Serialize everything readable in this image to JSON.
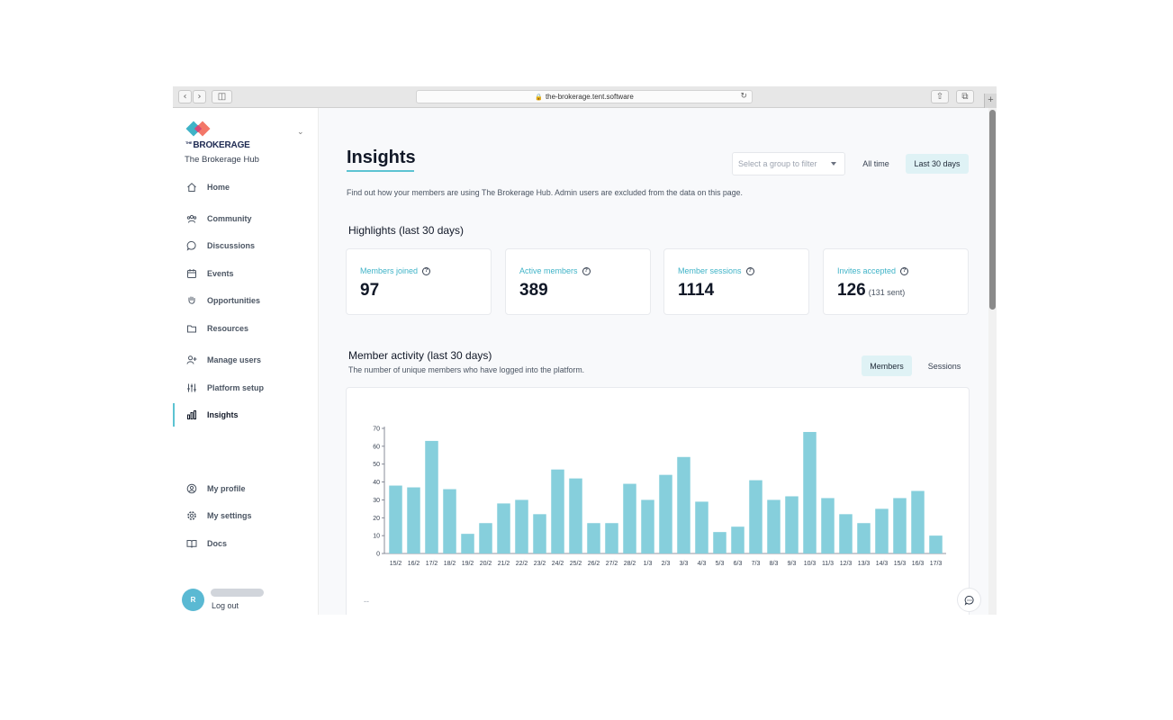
{
  "browser": {
    "url": "the-brokerage.tent.software"
  },
  "sidebar": {
    "logo_prefix": "THE",
    "logo_text": "BROKERAGE",
    "org_name": "The Brokerage Hub",
    "nav_items": [
      {
        "label": "Home",
        "icon": "home-icon"
      },
      {
        "label": "Community",
        "icon": "community-icon"
      },
      {
        "label": "Discussions",
        "icon": "chat-bubble-icon"
      },
      {
        "label": "Events",
        "icon": "calendar-icon"
      },
      {
        "label": "Opportunities",
        "icon": "hand-icon"
      },
      {
        "label": "Resources",
        "icon": "folder-icon"
      },
      {
        "label": "Manage users",
        "icon": "user-plus-icon"
      },
      {
        "label": "Platform setup",
        "icon": "sliders-icon"
      },
      {
        "label": "Insights",
        "icon": "bar-chart-icon"
      },
      {
        "label": "My profile",
        "icon": "user-circle-icon"
      },
      {
        "label": "My settings",
        "icon": "gear-icon"
      },
      {
        "label": "Docs",
        "icon": "book-icon"
      }
    ],
    "active_item": "Insights",
    "avatar_initial": "R",
    "logout_label": "Log out"
  },
  "header": {
    "title": "Insights",
    "group_filter_placeholder": "Select a group to filter",
    "range_all": "All time",
    "range_30": "Last 30 days",
    "description": "Find out how your members are using The Brokerage Hub. Admin users are excluded from the data on this page."
  },
  "highlights": {
    "title": "Highlights (last 30 days)",
    "cards": [
      {
        "label": "Members joined",
        "value": "97",
        "sub": ""
      },
      {
        "label": "Active members",
        "value": "389",
        "sub": ""
      },
      {
        "label": "Member sessions",
        "value": "1114",
        "sub": ""
      },
      {
        "label": "Invites accepted",
        "value": "126",
        "sub": "(131 sent)"
      }
    ]
  },
  "activity": {
    "title": "Member activity (last 30 days)",
    "subtitle": "The number of unique members who have logged into the platform.",
    "tab_members": "Members",
    "tab_sessions": "Sessions",
    "footer_dash": "--"
  },
  "colors": {
    "accent": "#5cc3d2",
    "bar": "#86cfdc",
    "label_accent": "#3fb3c7"
  },
  "chart_data": {
    "type": "bar",
    "categories": [
      "15/2",
      "16/2",
      "17/2",
      "18/2",
      "19/2",
      "20/2",
      "21/2",
      "22/2",
      "23/2",
      "24/2",
      "25/2",
      "26/2",
      "27/2",
      "28/2",
      "1/3",
      "2/3",
      "3/3",
      "4/3",
      "5/3",
      "6/3",
      "7/3",
      "8/3",
      "9/3",
      "10/3",
      "11/3",
      "12/3",
      "13/3",
      "14/3",
      "15/3",
      "16/3",
      "17/3"
    ],
    "values": [
      38,
      37,
      63,
      36,
      11,
      17,
      28,
      30,
      22,
      47,
      42,
      17,
      17,
      39,
      30,
      44,
      54,
      29,
      12,
      15,
      41,
      30,
      32,
      68,
      31,
      22,
      17,
      25,
      31,
      35,
      10
    ],
    "yticks": [
      0,
      10,
      20,
      30,
      40,
      50,
      60,
      70
    ],
    "ylim": [
      0,
      70
    ],
    "title": "",
    "xlabel": "",
    "ylabel": "",
    "grid": false
  }
}
